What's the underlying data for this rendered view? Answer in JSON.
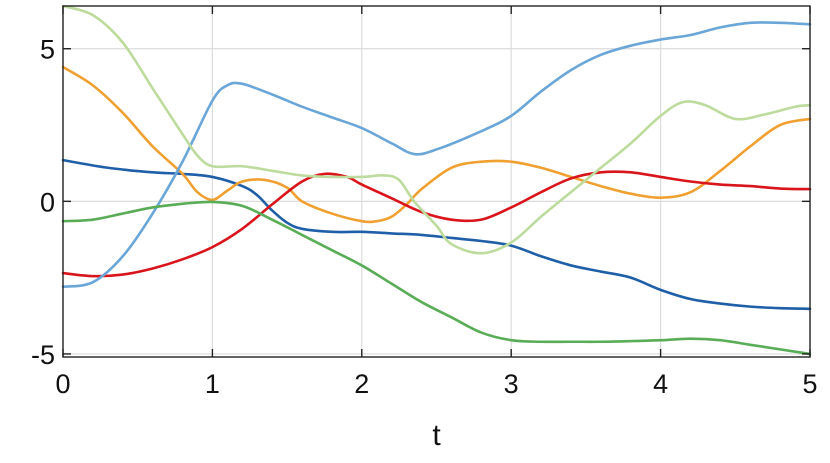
{
  "chart_data": {
    "type": "line",
    "title": "",
    "xlabel": "t",
    "ylabel": "",
    "xlim": [
      0,
      5
    ],
    "ylim": [
      -5.1,
      6.4
    ],
    "xticks": [
      0,
      1,
      2,
      3,
      4,
      5
    ],
    "yticks": [
      -5,
      0,
      5
    ],
    "xtick_labels": [
      "0",
      "1",
      "2",
      "3",
      "4",
      "5"
    ],
    "ytick_labels": [
      "-5",
      "0",
      "5"
    ],
    "grid": true,
    "legend": "none",
    "series": [
      {
        "color": "#1f5fa8",
        "x": [
          0,
          0.3,
          0.6,
          0.8,
          1.0,
          1.2,
          1.3,
          1.4,
          1.5,
          1.6,
          1.8,
          2.0,
          2.2,
          2.4,
          2.6,
          2.8,
          3.0,
          3.2,
          3.4,
          3.6,
          3.8,
          4.0,
          4.2,
          4.4,
          4.6,
          4.8,
          5.0
        ],
        "y": [
          1.35,
          1.1,
          0.95,
          0.9,
          0.8,
          0.5,
          0.2,
          -0.3,
          -0.7,
          -0.9,
          -1.0,
          -1.0,
          -1.05,
          -1.1,
          -1.2,
          -1.3,
          -1.45,
          -1.8,
          -2.1,
          -2.3,
          -2.5,
          -2.9,
          -3.2,
          -3.35,
          -3.45,
          -3.5,
          -3.52
        ]
      },
      {
        "color": "#f0a030",
        "x": [
          0,
          0.2,
          0.4,
          0.6,
          0.8,
          0.9,
          1.0,
          1.1,
          1.2,
          1.35,
          1.5,
          1.6,
          1.8,
          2.0,
          2.1,
          2.2,
          2.3,
          2.4,
          2.6,
          2.8,
          3.0,
          3.2,
          3.4,
          3.6,
          3.8,
          4.0,
          4.2,
          4.4,
          4.6,
          4.8,
          5.0
        ],
        "y": [
          4.4,
          3.8,
          2.9,
          1.8,
          0.9,
          0.3,
          0.05,
          0.35,
          0.65,
          0.7,
          0.45,
          0.0,
          -0.4,
          -0.65,
          -0.65,
          -0.5,
          -0.1,
          0.4,
          1.1,
          1.3,
          1.3,
          1.1,
          0.8,
          0.5,
          0.25,
          0.12,
          0.3,
          1.0,
          1.8,
          2.5,
          2.7
        ]
      },
      {
        "color": "#d9151b",
        "x": [
          0,
          0.2,
          0.4,
          0.6,
          0.8,
          1.0,
          1.2,
          1.4,
          1.6,
          1.75,
          1.9,
          2.0,
          2.2,
          2.4,
          2.6,
          2.8,
          3.0,
          3.2,
          3.4,
          3.6,
          3.8,
          4.0,
          4.2,
          4.4,
          4.6,
          4.8,
          5.0
        ],
        "y": [
          -2.35,
          -2.45,
          -2.4,
          -2.2,
          -1.9,
          -1.5,
          -0.9,
          -0.1,
          0.65,
          0.9,
          0.8,
          0.55,
          0.1,
          -0.35,
          -0.6,
          -0.6,
          -0.2,
          0.3,
          0.75,
          0.95,
          0.95,
          0.8,
          0.65,
          0.55,
          0.5,
          0.42,
          0.4
        ]
      },
      {
        "color": "#6aa6d8",
        "x": [
          0,
          0.2,
          0.4,
          0.6,
          0.8,
          1.0,
          1.1,
          1.2,
          1.4,
          1.6,
          1.8,
          2.0,
          2.2,
          2.35,
          2.5,
          2.8,
          3.0,
          3.2,
          3.4,
          3.6,
          3.8,
          4.0,
          4.2,
          4.4,
          4.6,
          4.8,
          5.0
        ],
        "y": [
          -2.8,
          -2.65,
          -1.8,
          -0.4,
          1.3,
          3.3,
          3.8,
          3.85,
          3.5,
          3.1,
          2.75,
          2.4,
          1.9,
          1.55,
          1.7,
          2.3,
          2.8,
          3.6,
          4.3,
          4.8,
          5.1,
          5.3,
          5.45,
          5.7,
          5.85,
          5.85,
          5.8
        ]
      },
      {
        "color": "#5aad57",
        "x": [
          0,
          0.2,
          0.4,
          0.6,
          0.8,
          1.0,
          1.2,
          1.4,
          1.6,
          1.8,
          2.0,
          2.2,
          2.4,
          2.6,
          2.8,
          3.0,
          3.2,
          3.4,
          3.6,
          3.8,
          4.0,
          4.2,
          4.4,
          4.6,
          4.8,
          5.0
        ],
        "y": [
          -0.65,
          -0.6,
          -0.4,
          -0.2,
          -0.08,
          -0.02,
          -0.15,
          -0.6,
          -1.1,
          -1.6,
          -2.1,
          -2.7,
          -3.3,
          -3.8,
          -4.3,
          -4.55,
          -4.6,
          -4.6,
          -4.6,
          -4.58,
          -4.55,
          -4.5,
          -4.55,
          -4.7,
          -4.85,
          -5.0
        ]
      },
      {
        "color": "#bddb9c",
        "x": [
          0,
          0.2,
          0.4,
          0.6,
          0.8,
          0.9,
          1.0,
          1.2,
          1.4,
          1.6,
          1.8,
          2.0,
          2.15,
          2.25,
          2.35,
          2.5,
          2.6,
          2.8,
          3.0,
          3.2,
          3.4,
          3.6,
          3.8,
          4.0,
          4.15,
          4.3,
          4.5,
          4.7,
          4.9,
          5.0
        ],
        "y": [
          6.4,
          6.1,
          5.2,
          3.7,
          2.2,
          1.5,
          1.15,
          1.15,
          1.0,
          0.85,
          0.8,
          0.8,
          0.85,
          0.7,
          0.0,
          -0.8,
          -1.4,
          -1.7,
          -1.35,
          -0.5,
          0.3,
          1.1,
          1.9,
          2.8,
          3.25,
          3.15,
          2.7,
          2.85,
          3.1,
          3.15
        ]
      }
    ]
  }
}
